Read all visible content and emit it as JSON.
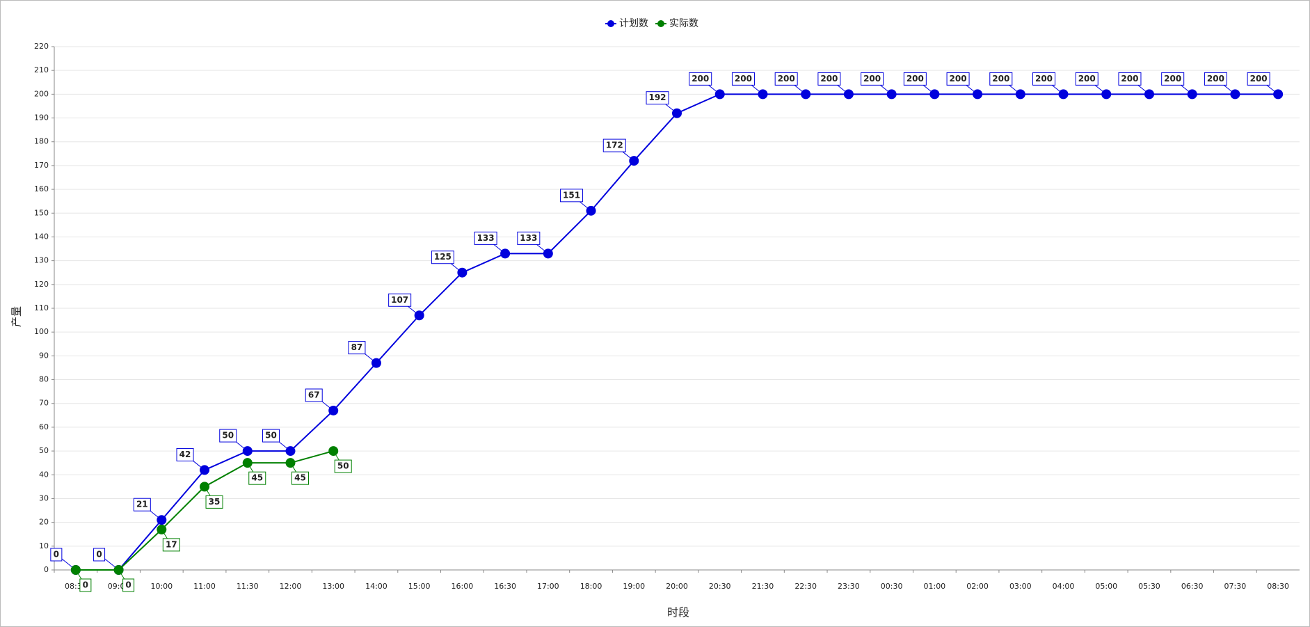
{
  "chart_data": {
    "type": "line",
    "x_label": "时段",
    "y_label": "产量",
    "categories": [
      "08:30",
      "09:00",
      "10:00",
      "11:00",
      "11:30",
      "12:00",
      "13:00",
      "14:00",
      "15:00",
      "16:00",
      "16:30",
      "17:00",
      "18:00",
      "19:00",
      "20:00",
      "20:30",
      "21:30",
      "22:30",
      "23:30",
      "00:30",
      "01:00",
      "02:00",
      "03:00",
      "04:00",
      "05:00",
      "05:30",
      "06:30",
      "07:30",
      "08:30"
    ],
    "series": [
      {
        "name": "计划数",
        "color": "#0000dd",
        "values": [
          0,
          0,
          21,
          42,
          50,
          50,
          67,
          87,
          107,
          125,
          133,
          133,
          151,
          172,
          192,
          200,
          200,
          200,
          200,
          200,
          200,
          200,
          200,
          200,
          200,
          200,
          200,
          200,
          200
        ]
      },
      {
        "name": "实际数",
        "color": "#008000",
        "values": [
          0,
          0,
          17,
          35,
          45,
          45,
          50,
          null,
          null,
          null,
          null,
          null,
          null,
          null,
          null,
          null,
          null,
          null,
          null,
          null,
          null,
          null,
          null,
          null,
          null,
          null,
          null,
          null,
          null
        ]
      }
    ],
    "ylim": [
      0,
      220
    ],
    "yticks": [
      0,
      10,
      20,
      30,
      40,
      50,
      60,
      70,
      80,
      90,
      100,
      110,
      120,
      130,
      140,
      150,
      160,
      170,
      180,
      190,
      200,
      210,
      220
    ],
    "grid": true
  }
}
